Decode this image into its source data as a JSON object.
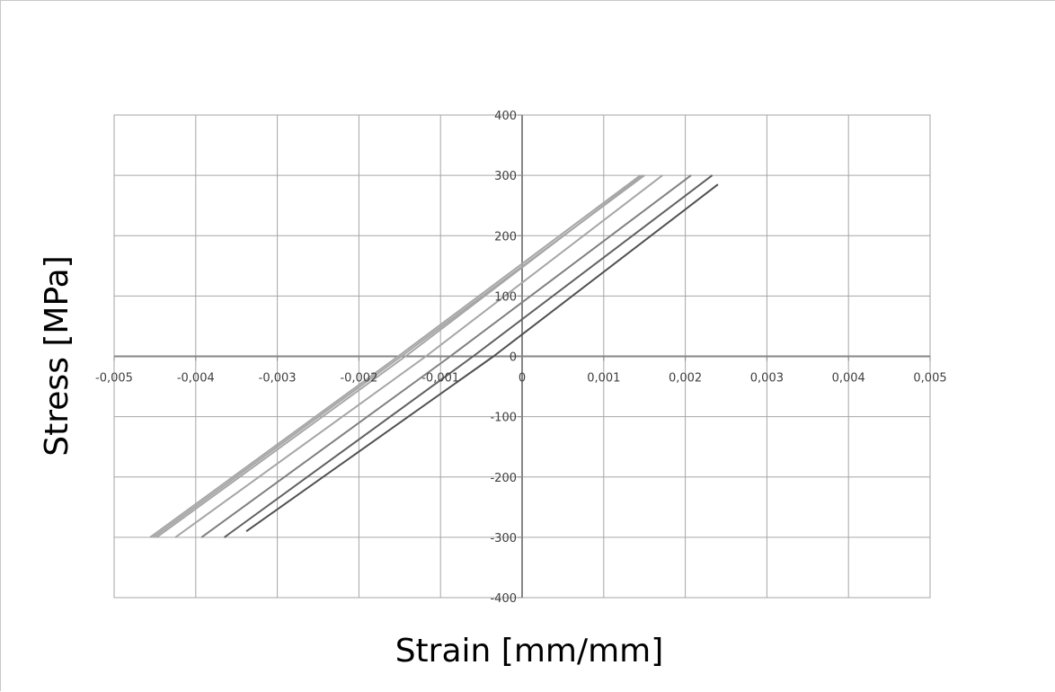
{
  "chart_data": {
    "type": "line",
    "title": "",
    "xlabel": "Strain [mm/mm]",
    "ylabel": "Stress [MPa]",
    "xlim": [
      -0.005,
      0.005
    ],
    "ylim": [
      -400,
      400
    ],
    "x_ticks": [
      -0.005,
      -0.004,
      -0.003,
      -0.002,
      -0.001,
      0,
      0.001,
      0.002,
      0.003,
      0.004,
      0.005
    ],
    "x_tick_labels": [
      "-0,005",
      "-0,004",
      "-0,003",
      "-0,002",
      "-0,001",
      "0",
      "0,001",
      "0,002",
      "0,003",
      "0,004",
      "0,005"
    ],
    "y_ticks": [
      -400,
      -300,
      -200,
      -100,
      0,
      100,
      200,
      300,
      400
    ],
    "y_tick_labels": [
      "-400",
      "-300",
      "-200",
      "-100",
      "0",
      "100",
      "200",
      "300",
      "400"
    ],
    "grid": true,
    "legend": false,
    "series": [
      {
        "color": "#a6a6a6",
        "points": [
          [
            -0.00456,
            -300
          ],
          [
            -0.00152,
            0
          ],
          [
            0.00145,
            300
          ]
        ]
      },
      {
        "color": "#a6a6a6",
        "points": [
          [
            -0.00452,
            -300
          ],
          [
            -0.00148,
            0
          ],
          [
            0.0015,
            300
          ]
        ]
      },
      {
        "color": "#a6a6a6",
        "points": [
          [
            -0.00448,
            -300
          ],
          [
            -0.00143,
            0
          ],
          [
            0.00148,
            300
          ]
        ]
      },
      {
        "color": "#a6a6a6",
        "points": [
          [
            -0.00425,
            -300
          ],
          [
            -0.00118,
            0
          ],
          [
            0.00172,
            300
          ]
        ]
      },
      {
        "color": "#808080",
        "points": [
          [
            -0.00393,
            -300
          ],
          [
            -0.00088,
            0
          ],
          [
            0.00207,
            300
          ]
        ]
      },
      {
        "color": "#606060",
        "points": [
          [
            -0.00365,
            -300
          ],
          [
            -0.0006,
            0
          ],
          [
            0.00233,
            300
          ]
        ]
      },
      {
        "color": "#505050",
        "points": [
          [
            -0.00338,
            -290
          ],
          [
            -0.00035,
            0
          ],
          [
            0.0024,
            285
          ]
        ]
      }
    ]
  }
}
